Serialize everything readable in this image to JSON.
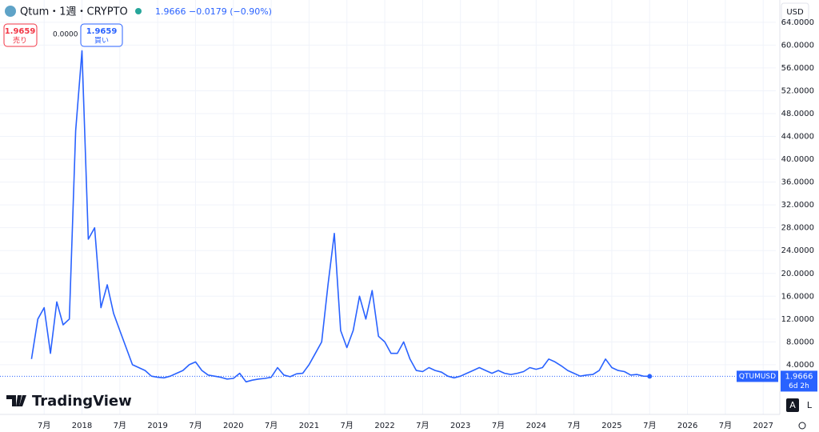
{
  "header": {
    "price": "1.9666",
    "change": "−0.0179 (−0.90%)",
    "sell_price": "1.9659",
    "sell_label": "売り",
    "spread": "0.0000",
    "buy_price": "1.9659",
    "buy_label": "買い",
    "currency": "USD",
    "brand": "TradingView",
    "auto_button": "A",
    "log_button": "L"
  },
  "price_tag": {
    "symbol": "QTUMUSD",
    "countdown": "6d 2h"
  },
  "chart_data": {
    "type": "line",
    "title": "Qtum・1週・CRYPTO",
    "color": "#2962ff",
    "grid": true,
    "x": [
      "2017-05",
      "2017-06",
      "2017-07",
      "2017-08",
      "2017-09",
      "2017-10",
      "2017-11",
      "2017-12",
      "2018-01",
      "2018-02",
      "2018-03",
      "2018-04",
      "2018-05",
      "2018-06",
      "2018-07",
      "2018-08",
      "2018-09",
      "2018-10",
      "2018-11",
      "2018-12",
      "2019-01",
      "2019-02",
      "2019-03",
      "2019-04",
      "2019-05",
      "2019-06",
      "2019-07",
      "2019-08",
      "2019-09",
      "2019-10",
      "2019-11",
      "2019-12",
      "2020-01",
      "2020-02",
      "2020-03",
      "2020-04",
      "2020-05",
      "2020-06",
      "2020-07",
      "2020-08",
      "2020-09",
      "2020-10",
      "2020-11",
      "2020-12",
      "2021-01",
      "2021-02",
      "2021-03",
      "2021-04",
      "2021-05",
      "2021-06",
      "2021-07",
      "2021-08",
      "2021-09",
      "2021-10",
      "2021-11",
      "2021-12",
      "2022-01",
      "2022-02",
      "2022-03",
      "2022-04",
      "2022-05",
      "2022-06",
      "2022-07",
      "2022-08",
      "2022-09",
      "2022-10",
      "2022-11",
      "2022-12",
      "2023-01",
      "2023-02",
      "2023-03",
      "2023-04",
      "2023-05",
      "2023-06",
      "2023-07",
      "2023-08",
      "2023-09",
      "2023-10",
      "2023-11",
      "2023-12",
      "2024-01",
      "2024-02",
      "2024-03",
      "2024-04",
      "2024-05",
      "2024-06",
      "2024-07",
      "2024-08",
      "2024-09",
      "2024-10",
      "2024-11",
      "2024-12",
      "2025-01",
      "2025-02",
      "2025-03",
      "2025-04",
      "2025-05",
      "2025-06",
      "2025-07"
    ],
    "values": [
      5,
      12,
      14,
      6,
      15,
      11,
      12,
      45,
      59,
      26,
      28,
      14,
      18,
      13,
      10,
      7,
      4,
      3.5,
      3,
      2,
      1.8,
      1.7,
      2,
      2.5,
      3,
      4,
      4.5,
      3,
      2.2,
      2,
      1.8,
      1.5,
      1.6,
      2.5,
      1,
      1.3,
      1.5,
      1.6,
      1.8,
      3.5,
      2.2,
      1.9,
      2.4,
      2.5,
      4,
      6,
      8,
      18,
      27,
      10,
      7,
      10,
      16,
      12,
      17,
      9,
      8,
      6,
      6,
      8,
      5,
      3,
      2.8,
      3.5,
      3,
      2.7,
      2,
      1.7,
      2,
      2.5,
      3,
      3.5,
      3,
      2.5,
      3,
      2.5,
      2.3,
      2.5,
      2.8,
      3.5,
      3.2,
      3.5,
      5,
      4.5,
      3.8,
      3,
      2.5,
      2,
      2.2,
      2.3,
      3,
      5,
      3.5,
      3,
      2.8,
      2.2,
      2.3,
      2,
      1.9666
    ],
    "xlim": [
      "2016-12",
      "2027-03"
    ],
    "xticks": [
      {
        "value": "2017-07",
        "label": "7月"
      },
      {
        "value": "2018-01",
        "label": "2018"
      },
      {
        "value": "2018-07",
        "label": "7月"
      },
      {
        "value": "2019-01",
        "label": "2019"
      },
      {
        "value": "2019-07",
        "label": "7月"
      },
      {
        "value": "2020-01",
        "label": "2020"
      },
      {
        "value": "2020-07",
        "label": "7月"
      },
      {
        "value": "2021-01",
        "label": "2021"
      },
      {
        "value": "2021-07",
        "label": "7月"
      },
      {
        "value": "2022-01",
        "label": "2022"
      },
      {
        "value": "2022-07",
        "label": "7月"
      },
      {
        "value": "2023-01",
        "label": "2023"
      },
      {
        "value": "2023-07",
        "label": "7月"
      },
      {
        "value": "2024-01",
        "label": "2024"
      },
      {
        "value": "2024-07",
        "label": "7月"
      },
      {
        "value": "2025-01",
        "label": "2025"
      },
      {
        "value": "2025-07",
        "label": "7月"
      },
      {
        "value": "2026-01",
        "label": "2026"
      },
      {
        "value": "2026-07",
        "label": "7月"
      },
      {
        "value": "2027-01",
        "label": "2027"
      }
    ],
    "ylim": [
      -4.7,
      67.9
    ],
    "yticks": [
      {
        "value": 4,
        "label": "4.0000"
      },
      {
        "value": 8,
        "label": "8.0000"
      },
      {
        "value": 12,
        "label": "12.0000"
      },
      {
        "value": 16,
        "label": "16.0000"
      },
      {
        "value": 20,
        "label": "20.0000"
      },
      {
        "value": 24,
        "label": "24.0000"
      },
      {
        "value": 28,
        "label": "28.0000"
      },
      {
        "value": 32,
        "label": "32.0000"
      },
      {
        "value": 36,
        "label": "36.0000"
      },
      {
        "value": 40,
        "label": "40.0000"
      },
      {
        "value": 44,
        "label": "44.0000"
      },
      {
        "value": 48,
        "label": "48.0000"
      },
      {
        "value": 52,
        "label": "52.0000"
      },
      {
        "value": 56,
        "label": "56.0000"
      },
      {
        "value": 60,
        "label": "60.0000"
      },
      {
        "value": 64,
        "label": "64.0000"
      }
    ]
  }
}
